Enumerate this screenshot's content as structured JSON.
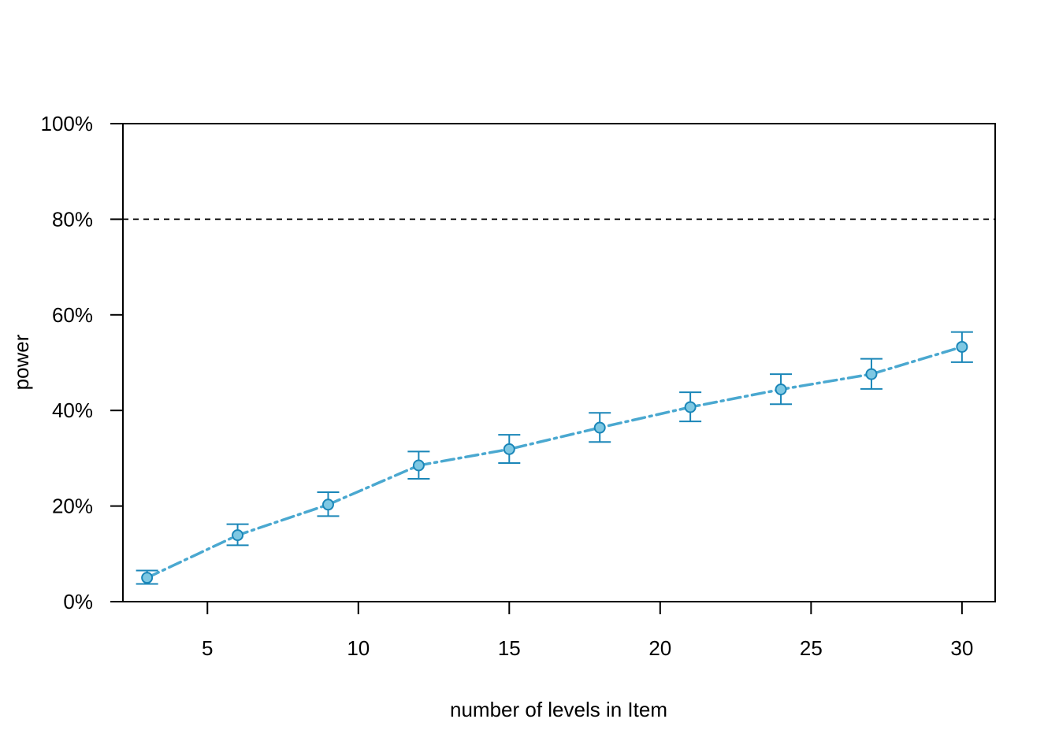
{
  "chart_data": {
    "type": "line",
    "title": "",
    "xlabel": "number of levels in Item",
    "ylabel": "power",
    "xlim": [
      2.2,
      31.1
    ],
    "ylim": [
      0,
      100
    ],
    "x_ticks": [
      5,
      10,
      15,
      20,
      25,
      30
    ],
    "y_ticks": [
      0,
      20,
      40,
      60,
      80,
      100
    ],
    "y_tick_labels": [
      "0%",
      "20%",
      "40%",
      "60%",
      "80%",
      "100%"
    ],
    "x_tick_labels": [
      "5",
      "10",
      "15",
      "20",
      "25",
      "30"
    ],
    "reference_line": {
      "y": 80,
      "style": "dashed",
      "color": "#000000"
    },
    "grid": false,
    "legend": "none",
    "series": [
      {
        "x": [
          3,
          6,
          9,
          12,
          15,
          18,
          21,
          24,
          27,
          30
        ],
        "y": [
          5.0,
          13.9,
          20.3,
          28.5,
          31.9,
          36.4,
          40.7,
          44.4,
          47.6,
          53.3
        ],
        "ci_lower": [
          3.7,
          11.8,
          17.9,
          25.7,
          29.0,
          33.4,
          37.7,
          41.3,
          44.5,
          50.1
        ],
        "ci_upper": [
          6.5,
          16.2,
          22.9,
          31.4,
          34.9,
          39.5,
          43.8,
          47.6,
          50.8,
          56.4
        ],
        "line_color": "#4aa8d0",
        "marker_fill": "#7ec8e3",
        "marker_edge": "#1a86b8",
        "errorbar_color": "#1a86b8",
        "line_style": "dot-dash"
      }
    ]
  }
}
